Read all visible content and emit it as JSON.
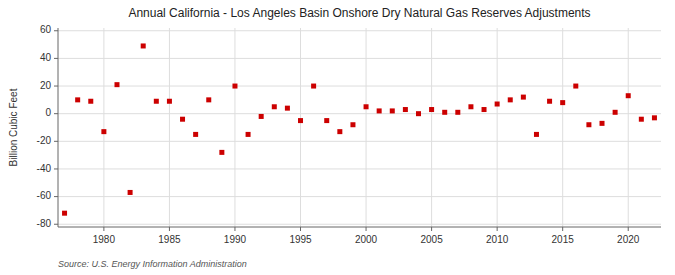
{
  "chart_data": {
    "type": "scatter",
    "title": "Annual California - Los Angeles Basin Onshore Dry Natural Gas Reserves Adjustments",
    "ylabel": "Billion Cubic Feet",
    "source": "Source: U.S. Energy Information Administration",
    "x": [
      1977,
      1978,
      1979,
      1980,
      1981,
      1982,
      1983,
      1984,
      1985,
      1986,
      1987,
      1988,
      1989,
      1990,
      1991,
      1992,
      1993,
      1994,
      1995,
      1996,
      1997,
      1998,
      1999,
      2000,
      2001,
      2002,
      2003,
      2004,
      2005,
      2006,
      2007,
      2008,
      2009,
      2010,
      2011,
      2012,
      2013,
      2014,
      2015,
      2016,
      2017,
      2018,
      2019,
      2020,
      2021,
      2022
    ],
    "values": [
      -72,
      10,
      9,
      -13,
      21,
      -57,
      49,
      9,
      9,
      -4,
      -15,
      10,
      -28,
      20,
      -15,
      -2,
      5,
      4,
      -5,
      20,
      -5,
      -13,
      -8,
      5,
      2,
      2,
      3,
      0,
      3,
      1,
      1,
      5,
      3,
      7,
      10,
      12,
      -15,
      9,
      8,
      20,
      -8,
      -7,
      1,
      13,
      -4,
      -3
    ],
    "color": "#cc0000",
    "marker": "square",
    "xlim": [
      1976.5,
      2022.5
    ],
    "ylim": [
      -82,
      62
    ],
    "xticks": [
      1980,
      1985,
      1990,
      1995,
      2000,
      2005,
      2010,
      2015,
      2020
    ],
    "yticks": [
      -80,
      -60,
      -40,
      -20,
      0,
      20,
      40,
      60
    ],
    "grid": true
  }
}
